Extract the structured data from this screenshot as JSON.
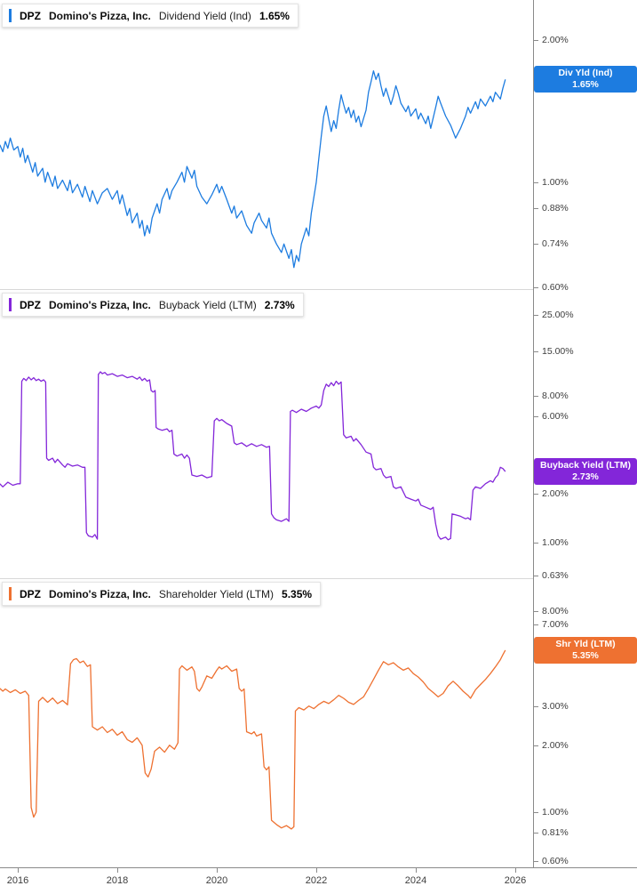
{
  "meta": {
    "ticker": "DPZ",
    "company": "Domino's Pizza, Inc."
  },
  "x_axis": {
    "xlim": [
      2015.643,
      2026.357
    ],
    "years": [
      2016,
      2018,
      2020,
      2022,
      2024,
      2026
    ],
    "labels": [
      "2016",
      "2018",
      "2020",
      "2022",
      "2024",
      "2026"
    ]
  },
  "chart_data": [
    {
      "type": "line",
      "title": "DPZ Domino's Pizza, Inc. Dividend Yield (Ind) 1.65%",
      "legend": {
        "ticker": "DPZ",
        "company": "Domino's Pizza, Inc.",
        "metric": "Dividend Yield (Ind)",
        "value": "1.65%"
      },
      "badge": {
        "line1": "Div Yld (Ind)",
        "line2": "1.65%"
      },
      "color": "#1d7ce0",
      "yscale": "log",
      "ylim": [
        0.594,
        2.43
      ],
      "yticks": [
        {
          "v": 2.0,
          "label": "2.00%"
        },
        {
          "v": 1.0,
          "label": "1.00%"
        },
        {
          "v": 0.88,
          "label": "0.88%"
        },
        {
          "v": 0.74,
          "label": "0.74%"
        },
        {
          "v": 0.6,
          "label": "0.60%"
        }
      ],
      "x": [
        2015.64,
        2015.7,
        2015.75,
        2015.8,
        2015.85,
        2015.92,
        2016.0,
        2016.05,
        2016.1,
        2016.15,
        2016.2,
        2016.3,
        2016.35,
        2016.4,
        2016.5,
        2016.55,
        2016.6,
        2016.7,
        2016.75,
        2016.8,
        2016.9,
        2017.0,
        2017.05,
        2017.1,
        2017.2,
        2017.3,
        2017.35,
        2017.45,
        2017.5,
        2017.6,
        2017.7,
        2017.8,
        2017.9,
        2018.0,
        2018.05,
        2018.1,
        2018.2,
        2018.25,
        2018.3,
        2018.4,
        2018.45,
        2018.5,
        2018.55,
        2018.6,
        2018.65,
        2018.7,
        2018.8,
        2018.85,
        2018.9,
        2019.0,
        2019.05,
        2019.1,
        2019.2,
        2019.3,
        2019.35,
        2019.4,
        2019.5,
        2019.55,
        2019.6,
        2019.7,
        2019.8,
        2019.9,
        2020.0,
        2020.05,
        2020.1,
        2020.2,
        2020.3,
        2020.35,
        2020.4,
        2020.5,
        2020.6,
        2020.7,
        2020.75,
        2020.85,
        2020.9,
        2021.0,
        2021.05,
        2021.1,
        2021.2,
        2021.3,
        2021.35,
        2021.45,
        2021.5,
        2021.55,
        2021.6,
        2021.65,
        2021.7,
        2021.8,
        2021.85,
        2021.9,
        2022.0,
        2022.05,
        2022.1,
        2022.15,
        2022.2,
        2022.25,
        2022.3,
        2022.35,
        2022.4,
        2022.45,
        2022.5,
        2022.55,
        2022.6,
        2022.65,
        2022.7,
        2022.75,
        2022.8,
        2022.85,
        2022.9,
        2023.0,
        2023.05,
        2023.1,
        2023.15,
        2023.2,
        2023.25,
        2023.3,
        2023.35,
        2023.4,
        2023.5,
        2023.55,
        2023.6,
        2023.65,
        2023.7,
        2023.8,
        2023.85,
        2023.9,
        2024.0,
        2024.05,
        2024.1,
        2024.2,
        2024.25,
        2024.3,
        2024.4,
        2024.45,
        2024.5,
        2024.6,
        2024.7,
        2024.75,
        2024.8,
        2024.9,
        2025.0,
        2025.05,
        2025.1,
        2025.2,
        2025.25,
        2025.3,
        2025.4,
        2025.5,
        2025.55,
        2025.6,
        2025.7,
        2025.75,
        2025.8
      ],
      "y": [
        1.2,
        1.16,
        1.22,
        1.18,
        1.24,
        1.17,
        1.19,
        1.13,
        1.18,
        1.1,
        1.14,
        1.05,
        1.1,
        1.03,
        1.07,
        1.0,
        1.05,
        0.98,
        1.03,
        0.97,
        1.01,
        0.96,
        1.01,
        0.95,
        0.99,
        0.93,
        0.98,
        0.91,
        0.96,
        0.9,
        0.95,
        0.97,
        0.92,
        0.96,
        0.9,
        0.94,
        0.85,
        0.88,
        0.82,
        0.86,
        0.8,
        0.83,
        0.77,
        0.81,
        0.78,
        0.84,
        0.9,
        0.86,
        0.92,
        0.97,
        0.92,
        0.96,
        1.0,
        1.05,
        1.0,
        1.08,
        1.02,
        1.06,
        0.98,
        0.93,
        0.9,
        0.94,
        0.99,
        0.95,
        0.98,
        0.92,
        0.86,
        0.89,
        0.84,
        0.87,
        0.81,
        0.78,
        0.82,
        0.86,
        0.83,
        0.8,
        0.84,
        0.78,
        0.74,
        0.71,
        0.74,
        0.69,
        0.72,
        0.66,
        0.7,
        0.68,
        0.74,
        0.8,
        0.77,
        0.86,
        1.0,
        1.12,
        1.25,
        1.38,
        1.45,
        1.36,
        1.28,
        1.35,
        1.3,
        1.42,
        1.53,
        1.46,
        1.4,
        1.44,
        1.37,
        1.42,
        1.34,
        1.38,
        1.31,
        1.42,
        1.55,
        1.63,
        1.72,
        1.65,
        1.7,
        1.6,
        1.52,
        1.58,
        1.46,
        1.52,
        1.6,
        1.54,
        1.47,
        1.41,
        1.45,
        1.38,
        1.43,
        1.36,
        1.4,
        1.33,
        1.38,
        1.3,
        1.44,
        1.52,
        1.47,
        1.38,
        1.32,
        1.28,
        1.24,
        1.3,
        1.38,
        1.44,
        1.4,
        1.48,
        1.43,
        1.5,
        1.45,
        1.52,
        1.48,
        1.55,
        1.5,
        1.58,
        1.65
      ]
    },
    {
      "type": "line",
      "title": "DPZ Domino's Pizza, Inc. Buyback Yield (LTM) 2.73%",
      "legend": {
        "ticker": "DPZ",
        "company": "Domino's Pizza, Inc.",
        "metric": "Buyback Yield (LTM)",
        "value": "2.73%"
      },
      "badge": {
        "line1": "Buyback Yield (LTM)",
        "line2": "2.73%"
      },
      "color": "#8326d9",
      "yscale": "log",
      "ylim": [
        0.604,
        36.1
      ],
      "yticks": [
        {
          "v": 25.0,
          "label": "25.00%"
        },
        {
          "v": 15.0,
          "label": "15.00%"
        },
        {
          "v": 8.0,
          "label": "8.00%"
        },
        {
          "v": 6.0,
          "label": "6.00%"
        },
        {
          "v": 2.0,
          "label": "2.00%"
        },
        {
          "v": 1.0,
          "label": "1.00%"
        },
        {
          "v": 0.63,
          "label": "0.63%"
        }
      ],
      "x": [
        2015.64,
        2015.7,
        2015.8,
        2015.9,
        2016.0,
        2016.05,
        2016.08,
        2016.12,
        2016.17,
        2016.22,
        2016.27,
        2016.32,
        2016.37,
        2016.42,
        2016.47,
        2016.52,
        2016.56,
        2016.58,
        2016.62,
        2016.7,
        2016.75,
        2016.8,
        2016.9,
        2016.95,
        2017.0,
        2017.1,
        2017.2,
        2017.3,
        2017.35,
        2017.38,
        2017.42,
        2017.5,
        2017.55,
        2017.6,
        2017.62,
        2017.66,
        2017.7,
        2017.75,
        2017.8,
        2017.9,
        2018.0,
        2018.1,
        2018.2,
        2018.3,
        2018.4,
        2018.45,
        2018.5,
        2018.55,
        2018.6,
        2018.65,
        2018.68,
        2018.72,
        2018.76,
        2018.78,
        2018.82,
        2018.9,
        2019.0,
        2019.05,
        2019.1,
        2019.14,
        2019.2,
        2019.3,
        2019.35,
        2019.4,
        2019.45,
        2019.5,
        2019.6,
        2019.7,
        2019.8,
        2019.9,
        2019.95,
        2020.0,
        2020.05,
        2020.1,
        2020.2,
        2020.3,
        2020.35,
        2020.4,
        2020.5,
        2020.6,
        2020.7,
        2020.8,
        2020.9,
        2021.0,
        2021.06,
        2021.1,
        2021.15,
        2021.2,
        2021.3,
        2021.4,
        2021.45,
        2021.48,
        2021.52,
        2021.6,
        2021.7,
        2021.8,
        2021.9,
        2022.0,
        2022.05,
        2022.1,
        2022.15,
        2022.2,
        2022.25,
        2022.3,
        2022.35,
        2022.4,
        2022.45,
        2022.5,
        2022.55,
        2022.6,
        2022.7,
        2022.75,
        2022.8,
        2022.9,
        2023.0,
        2023.1,
        2023.15,
        2023.2,
        2023.3,
        2023.35,
        2023.4,
        2023.5,
        2023.55,
        2023.6,
        2023.7,
        2023.8,
        2023.9,
        2024.0,
        2024.05,
        2024.1,
        2024.2,
        2024.3,
        2024.35,
        2024.4,
        2024.45,
        2024.5,
        2024.6,
        2024.65,
        2024.7,
        2024.73,
        2024.8,
        2024.9,
        2025.0,
        2025.05,
        2025.1,
        2025.15,
        2025.2,
        2025.3,
        2025.4,
        2025.5,
        2025.55,
        2025.6,
        2025.65,
        2025.7,
        2025.75,
        2025.8
      ],
      "y": [
        2.3,
        2.2,
        2.35,
        2.25,
        2.3,
        2.3,
        9.8,
        10.2,
        9.9,
        10.4,
        10.0,
        10.3,
        9.9,
        10.1,
        9.8,
        10.0,
        9.7,
        3.3,
        3.2,
        3.3,
        3.1,
        3.25,
        3.0,
        2.9,
        3.05,
        2.95,
        3.0,
        2.9,
        2.9,
        1.15,
        1.1,
        1.08,
        1.12,
        1.05,
        10.8,
        11.2,
        10.9,
        11.1,
        10.7,
        10.9,
        10.5,
        10.7,
        10.3,
        10.5,
        10.1,
        10.4,
        9.9,
        10.2,
        9.8,
        10.0,
        8.6,
        8.4,
        8.6,
        5.1,
        5.0,
        4.9,
        5.0,
        4.8,
        4.9,
        3.5,
        3.4,
        3.5,
        3.3,
        3.45,
        3.3,
        2.6,
        2.55,
        2.6,
        2.5,
        2.55,
        5.6,
        5.8,
        5.6,
        5.7,
        5.4,
        5.2,
        4.1,
        4.0,
        4.1,
        3.9,
        4.05,
        3.9,
        4.0,
        3.85,
        3.9,
        1.5,
        1.42,
        1.38,
        1.35,
        1.4,
        1.35,
        6.4,
        6.5,
        6.3,
        6.6,
        6.4,
        6.7,
        6.9,
        6.7,
        7.0,
        8.6,
        9.4,
        9.1,
        9.6,
        9.2,
        9.8,
        9.4,
        9.7,
        4.6,
        4.4,
        4.5,
        4.2,
        4.35,
        4.0,
        3.6,
        3.5,
        2.9,
        2.8,
        2.85,
        2.6,
        2.5,
        2.55,
        2.2,
        2.15,
        2.2,
        1.9,
        1.85,
        1.8,
        1.85,
        1.7,
        1.65,
        1.6,
        1.65,
        1.3,
        1.1,
        1.05,
        1.08,
        1.04,
        1.06,
        1.5,
        1.48,
        1.45,
        1.4,
        1.42,
        1.38,
        2.1,
        2.2,
        2.15,
        2.3,
        2.4,
        2.35,
        2.5,
        2.6,
        2.9,
        2.85,
        2.73
      ]
    },
    {
      "type": "line",
      "title": "DPZ Domino's Pizza, Inc. Shareholder Yield (LTM) 5.35%",
      "legend": {
        "ticker": "DPZ",
        "company": "Domino's Pizza, Inc.",
        "metric": "Shareholder Yield (LTM)",
        "value": "5.35%"
      },
      "badge": {
        "line1": "Shr Yld (LTM)",
        "line2": "5.35%"
      },
      "color": "#ee7131",
      "yscale": "log",
      "ylim": [
        0.565,
        11.27
      ],
      "yticks": [
        {
          "v": 8.0,
          "label": "8.00%"
        },
        {
          "v": 7.0,
          "label": "7.00%"
        },
        {
          "v": 3.0,
          "label": "3.00%"
        },
        {
          "v": 2.0,
          "label": "2.00%"
        },
        {
          "v": 1.0,
          "label": "1.00%"
        },
        {
          "v": 0.81,
          "label": "0.81%"
        },
        {
          "v": 0.6,
          "label": "0.60%"
        }
      ],
      "x": [
        2015.64,
        2015.7,
        2015.75,
        2015.85,
        2015.95,
        2016.05,
        2016.15,
        2016.22,
        2016.27,
        2016.32,
        2016.37,
        2016.42,
        2016.5,
        2016.6,
        2016.7,
        2016.8,
        2016.9,
        2017.0,
        2017.06,
        2017.12,
        2017.18,
        2017.25,
        2017.32,
        2017.4,
        2017.46,
        2017.5,
        2017.6,
        2017.7,
        2017.8,
        2017.9,
        2018.0,
        2018.1,
        2018.2,
        2018.3,
        2018.4,
        2018.5,
        2018.56,
        2018.62,
        2018.68,
        2018.75,
        2018.85,
        2018.95,
        2019.05,
        2019.15,
        2019.22,
        2019.25,
        2019.3,
        2019.4,
        2019.5,
        2019.55,
        2019.6,
        2019.65,
        2019.7,
        2019.8,
        2019.9,
        2020.0,
        2020.05,
        2020.1,
        2020.2,
        2020.3,
        2020.4,
        2020.45,
        2020.5,
        2020.55,
        2020.6,
        2020.7,
        2020.75,
        2020.8,
        2020.9,
        2020.95,
        2021.0,
        2021.05,
        2021.1,
        2021.2,
        2021.3,
        2021.4,
        2021.5,
        2021.55,
        2021.58,
        2021.65,
        2021.75,
        2021.85,
        2021.95,
        2022.05,
        2022.15,
        2022.25,
        2022.35,
        2022.45,
        2022.55,
        2022.65,
        2022.75,
        2022.85,
        2022.95,
        2023.05,
        2023.15,
        2023.25,
        2023.35,
        2023.45,
        2023.55,
        2023.65,
        2023.75,
        2023.85,
        2023.95,
        2024.05,
        2024.15,
        2024.25,
        2024.35,
        2024.45,
        2024.55,
        2024.65,
        2024.75,
        2024.85,
        2024.95,
        2025.05,
        2025.1,
        2025.2,
        2025.3,
        2025.4,
        2025.5,
        2025.6,
        2025.7,
        2025.75,
        2025.8
      ],
      "y": [
        3.6,
        3.5,
        3.58,
        3.45,
        3.55,
        3.42,
        3.5,
        3.35,
        1.05,
        0.95,
        1.0,
        3.15,
        3.28,
        3.12,
        3.26,
        3.08,
        3.18,
        3.04,
        4.65,
        4.85,
        4.9,
        4.7,
        4.78,
        4.52,
        4.6,
        2.42,
        2.34,
        2.42,
        2.28,
        2.36,
        2.22,
        2.3,
        2.12,
        2.06,
        2.16,
        2.0,
        1.5,
        1.44,
        1.56,
        1.88,
        1.96,
        1.86,
        2.0,
        1.92,
        2.05,
        4.4,
        4.55,
        4.35,
        4.5,
        4.3,
        3.6,
        3.5,
        3.65,
        4.1,
        4.0,
        4.35,
        4.5,
        4.4,
        4.55,
        4.3,
        4.4,
        3.6,
        3.5,
        3.58,
        2.3,
        2.25,
        2.3,
        2.2,
        2.25,
        1.6,
        1.55,
        1.6,
        0.92,
        0.88,
        0.85,
        0.87,
        0.84,
        0.86,
        2.85,
        2.95,
        2.88,
        3.0,
        2.92,
        3.05,
        3.15,
        3.08,
        3.2,
        3.35,
        3.25,
        3.12,
        3.05,
        3.18,
        3.3,
        3.6,
        3.95,
        4.35,
        4.75,
        4.6,
        4.7,
        4.5,
        4.35,
        4.45,
        4.2,
        4.05,
        3.85,
        3.6,
        3.45,
        3.3,
        3.42,
        3.7,
        3.88,
        3.7,
        3.5,
        3.35,
        3.25,
        3.55,
        3.75,
        3.95,
        4.2,
        4.5,
        4.85,
        5.1,
        5.35
      ]
    }
  ]
}
